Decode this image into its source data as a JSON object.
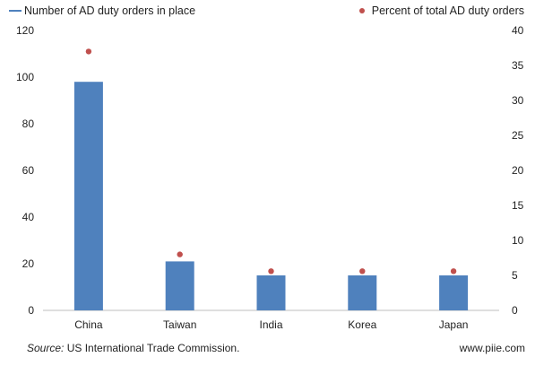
{
  "chart_data": {
    "type": "bar",
    "categories": [
      "China",
      "Taiwan",
      "India",
      "Korea",
      "Japan"
    ],
    "series": [
      {
        "name": "Number of AD duty orders in place",
        "kind": "bar",
        "axis": "left",
        "color": "#4f81bd",
        "values": [
          98,
          21,
          15,
          15,
          15
        ]
      },
      {
        "name": "Percent of total AD duty orders",
        "kind": "scatter",
        "axis": "right",
        "color": "#c0504d",
        "values": [
          37,
          8,
          5.6,
          5.6,
          5.6
        ]
      }
    ],
    "y_left": {
      "min": 0,
      "max": 120,
      "ticks": [
        "0",
        "20",
        "40",
        "60",
        "80",
        "100",
        "120"
      ]
    },
    "y_right": {
      "min": 0,
      "max": 40,
      "ticks": [
        "0",
        "5",
        "10",
        "15",
        "20",
        "25",
        "30",
        "35",
        "40"
      ]
    },
    "grid": false,
    "legend": "top"
  },
  "footer": {
    "source_label": "Source:",
    "source_text": " US International Trade Commission.",
    "site": "www.piie.com"
  }
}
